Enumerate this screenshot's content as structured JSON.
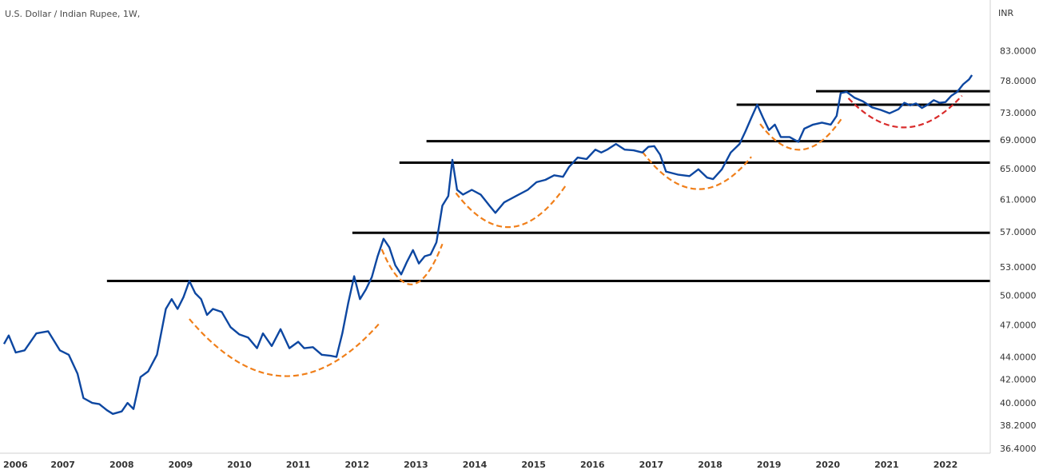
{
  "chart_data": {
    "type": "line",
    "title": "U.S. Dollar / Indian Rupee, 1W,",
    "y_unit": "INR",
    "y_scale": "log",
    "ylim": [
      36.4,
      88
    ],
    "xlim": [
      2006.0,
      2022.8
    ],
    "y_ticks": [
      {
        "value": 83,
        "label": "83.0000"
      },
      {
        "value": 78,
        "label": "78.0000"
      },
      {
        "value": 73,
        "label": "73.0000"
      },
      {
        "value": 69,
        "label": "69.0000"
      },
      {
        "value": 65,
        "label": "65.0000"
      },
      {
        "value": 61,
        "label": "61.0000"
      },
      {
        "value": 57,
        "label": "57.0000"
      },
      {
        "value": 53,
        "label": "53.0000"
      },
      {
        "value": 50,
        "label": "50.0000"
      },
      {
        "value": 47,
        "label": "47.0000"
      },
      {
        "value": 44,
        "label": "44.0000"
      },
      {
        "value": 42,
        "label": "42.0000"
      },
      {
        "value": 40,
        "label": "40.0000"
      },
      {
        "value": 38.2,
        "label": "38.2000"
      },
      {
        "value": 36.4,
        "label": "36.4000"
      }
    ],
    "x_ticks": [
      {
        "value": 2006,
        "label": "2006"
      },
      {
        "value": 2007,
        "label": "2007"
      },
      {
        "value": 2008,
        "label": "2008"
      },
      {
        "value": 2009,
        "label": "2009"
      },
      {
        "value": 2010,
        "label": "2010"
      },
      {
        "value": 2011,
        "label": "2011"
      },
      {
        "value": 2012,
        "label": "2012"
      },
      {
        "value": 2013,
        "label": "2013"
      },
      {
        "value": 2014,
        "label": "2014"
      },
      {
        "value": 2015,
        "label": "2015"
      },
      {
        "value": 2016,
        "label": "2016"
      },
      {
        "value": 2017,
        "label": "2017"
      },
      {
        "value": 2018,
        "label": "2018"
      },
      {
        "value": 2019,
        "label": "2019"
      },
      {
        "value": 2020,
        "label": "2020"
      },
      {
        "value": 2021,
        "label": "2021"
      },
      {
        "value": 2022,
        "label": "2022"
      }
    ],
    "series": [
      {
        "color": "#0d47a1",
        "points": [
          [
            2006.0,
            45.2
          ],
          [
            2006.08,
            46.0
          ],
          [
            2006.2,
            44.4
          ],
          [
            2006.35,
            44.6
          ],
          [
            2006.55,
            46.2
          ],
          [
            2006.75,
            46.4
          ],
          [
            2006.95,
            44.6
          ],
          [
            2007.1,
            44.2
          ],
          [
            2007.25,
            42.5
          ],
          [
            2007.35,
            40.4
          ],
          [
            2007.5,
            40.0
          ],
          [
            2007.62,
            39.9
          ],
          [
            2007.75,
            39.4
          ],
          [
            2007.85,
            39.1
          ],
          [
            2008.0,
            39.3
          ],
          [
            2008.1,
            40.0
          ],
          [
            2008.2,
            39.5
          ],
          [
            2008.32,
            42.2
          ],
          [
            2008.45,
            42.7
          ],
          [
            2008.6,
            44.2
          ],
          [
            2008.75,
            48.6
          ],
          [
            2008.85,
            49.6
          ],
          [
            2008.95,
            48.6
          ],
          [
            2009.05,
            49.8
          ],
          [
            2009.15,
            51.5
          ],
          [
            2009.25,
            50.2
          ],
          [
            2009.35,
            49.6
          ],
          [
            2009.45,
            48.0
          ],
          [
            2009.55,
            48.6
          ],
          [
            2009.7,
            48.3
          ],
          [
            2009.85,
            46.8
          ],
          [
            2010.0,
            46.1
          ],
          [
            2010.15,
            45.8
          ],
          [
            2010.3,
            44.8
          ],
          [
            2010.4,
            46.2
          ],
          [
            2010.55,
            45.0
          ],
          [
            2010.7,
            46.6
          ],
          [
            2010.85,
            44.8
          ],
          [
            2011.0,
            45.4
          ],
          [
            2011.1,
            44.8
          ],
          [
            2011.25,
            44.9
          ],
          [
            2011.4,
            44.2
          ],
          [
            2011.55,
            44.1
          ],
          [
            2011.65,
            44.0
          ],
          [
            2011.75,
            46.2
          ],
          [
            2011.85,
            49.2
          ],
          [
            2011.95,
            52.0
          ],
          [
            2012.05,
            49.6
          ],
          [
            2012.15,
            50.6
          ],
          [
            2012.25,
            51.9
          ],
          [
            2012.35,
            54.2
          ],
          [
            2012.45,
            56.2
          ],
          [
            2012.55,
            55.2
          ],
          [
            2012.65,
            53.2
          ],
          [
            2012.75,
            52.2
          ],
          [
            2012.85,
            53.6
          ],
          [
            2012.95,
            54.9
          ],
          [
            2013.05,
            53.4
          ],
          [
            2013.15,
            54.2
          ],
          [
            2013.25,
            54.4
          ],
          [
            2013.35,
            55.8
          ],
          [
            2013.45,
            60.2
          ],
          [
            2013.55,
            61.4
          ],
          [
            2013.62,
            66.2
          ],
          [
            2013.7,
            62.2
          ],
          [
            2013.8,
            61.6
          ],
          [
            2013.95,
            62.2
          ],
          [
            2014.1,
            61.6
          ],
          [
            2014.25,
            60.2
          ],
          [
            2014.35,
            59.3
          ],
          [
            2014.5,
            60.6
          ],
          [
            2014.7,
            61.4
          ],
          [
            2014.9,
            62.2
          ],
          [
            2015.05,
            63.2
          ],
          [
            2015.2,
            63.5
          ],
          [
            2015.35,
            64.1
          ],
          [
            2015.5,
            63.9
          ],
          [
            2015.6,
            65.2
          ],
          [
            2015.75,
            66.5
          ],
          [
            2015.9,
            66.3
          ],
          [
            2016.05,
            67.6
          ],
          [
            2016.15,
            67.2
          ],
          [
            2016.25,
            67.6
          ],
          [
            2016.4,
            68.4
          ],
          [
            2016.55,
            67.6
          ],
          [
            2016.7,
            67.5
          ],
          [
            2016.85,
            67.2
          ],
          [
            2016.95,
            68.0
          ],
          [
            2017.05,
            68.1
          ],
          [
            2017.15,
            66.9
          ],
          [
            2017.25,
            64.6
          ],
          [
            2017.45,
            64.2
          ],
          [
            2017.65,
            64.0
          ],
          [
            2017.8,
            64.9
          ],
          [
            2017.95,
            63.8
          ],
          [
            2018.05,
            63.6
          ],
          [
            2018.2,
            64.9
          ],
          [
            2018.35,
            67.2
          ],
          [
            2018.5,
            68.4
          ],
          [
            2018.6,
            70.2
          ],
          [
            2018.7,
            72.2
          ],
          [
            2018.8,
            74.2
          ],
          [
            2018.9,
            72.2
          ],
          [
            2019.0,
            70.4
          ],
          [
            2019.1,
            71.2
          ],
          [
            2019.2,
            69.4
          ],
          [
            2019.35,
            69.4
          ],
          [
            2019.5,
            68.7
          ],
          [
            2019.6,
            70.6
          ],
          [
            2019.75,
            71.2
          ],
          [
            2019.9,
            71.5
          ],
          [
            2020.05,
            71.2
          ],
          [
            2020.15,
            72.5
          ],
          [
            2020.22,
            76.0
          ],
          [
            2020.32,
            76.2
          ],
          [
            2020.45,
            75.3
          ],
          [
            2020.6,
            74.7
          ],
          [
            2020.75,
            73.8
          ],
          [
            2020.9,
            73.4
          ],
          [
            2021.05,
            72.9
          ],
          [
            2021.2,
            73.5
          ],
          [
            2021.3,
            74.5
          ],
          [
            2021.4,
            74.1
          ],
          [
            2021.5,
            74.4
          ],
          [
            2021.6,
            73.7
          ],
          [
            2021.7,
            74.2
          ],
          [
            2021.8,
            74.9
          ],
          [
            2021.9,
            74.5
          ],
          [
            2022.0,
            74.6
          ],
          [
            2022.1,
            75.6
          ],
          [
            2022.2,
            76.2
          ],
          [
            2022.3,
            77.4
          ],
          [
            2022.4,
            78.2
          ],
          [
            2022.45,
            78.9
          ]
        ]
      }
    ],
    "resistance_lines": [
      {
        "y": 51.5,
        "x_start": 2007.75,
        "x_end": 2022.8,
        "color": "#000000"
      },
      {
        "y": 56.9,
        "x_start": 2011.92,
        "x_end": 2022.8,
        "color": "#000000"
      },
      {
        "y": 65.8,
        "x_start": 2012.72,
        "x_end": 2022.8,
        "color": "#000000"
      },
      {
        "y": 68.8,
        "x_start": 2013.18,
        "x_end": 2022.8,
        "color": "#000000"
      },
      {
        "y": 74.2,
        "x_start": 2018.45,
        "x_end": 2022.8,
        "color": "#000000"
      },
      {
        "y": 76.3,
        "x_start": 2019.8,
        "x_end": 2022.8,
        "color": "#000000"
      }
    ],
    "cup_curves": [
      {
        "x": [
          2009.15,
          2010.7,
          2012.4
        ],
        "y": [
          47.6,
          42.3,
          47.3
        ],
        "color": "#f07f1a"
      },
      {
        "x": [
          2012.42,
          2012.85,
          2013.45
        ],
        "y": [
          55.0,
          51.2,
          55.6
        ],
        "color": "#f07f1a"
      },
      {
        "x": [
          2013.68,
          2014.5,
          2015.55
        ],
        "y": [
          61.8,
          57.6,
          62.8
        ],
        "color": "#f07f1a"
      },
      {
        "x": [
          2016.85,
          2017.85,
          2018.7
        ],
        "y": [
          67.3,
          62.3,
          66.6
        ],
        "color": "#f07f1a"
      },
      {
        "x": [
          2018.85,
          2019.35,
          2020.25
        ],
        "y": [
          71.3,
          67.8,
          72.3
        ],
        "color": "#f07f1a"
      },
      {
        "x": [
          2020.35,
          2021.25,
          2022.28
        ],
        "y": [
          75.2,
          70.8,
          75.6
        ],
        "color": "#d92b2b"
      }
    ]
  }
}
